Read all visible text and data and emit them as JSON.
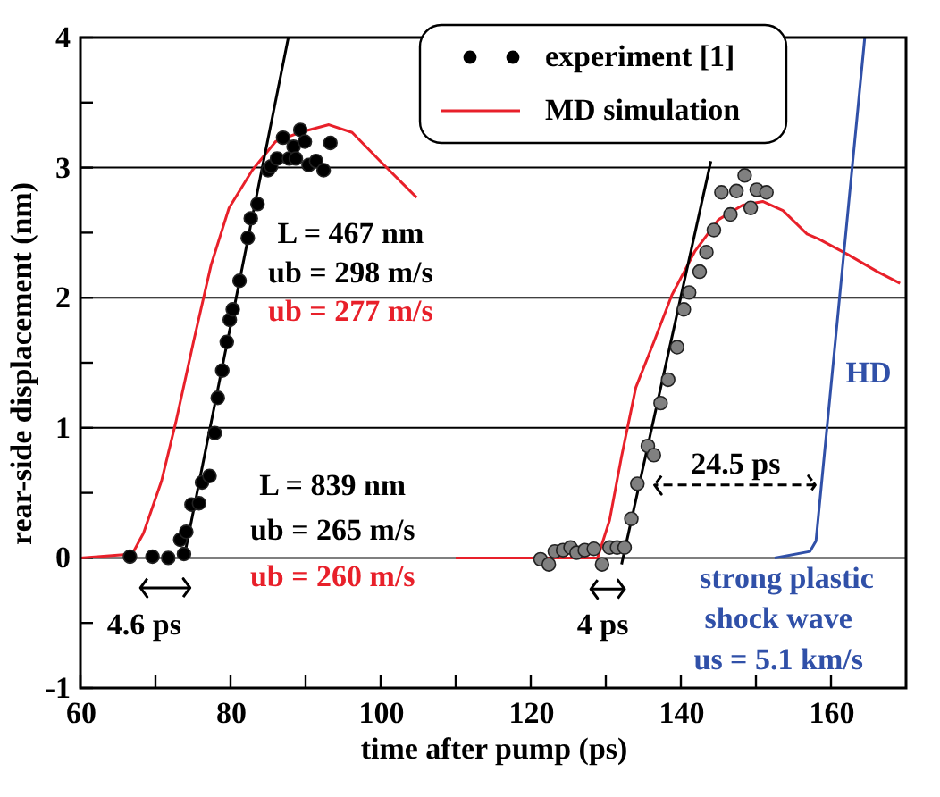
{
  "chart_data": {
    "type": "line",
    "xlabel": "time after pump (ps)",
    "ylabel": "rear-side displacement (nm)",
    "xlim": [
      60,
      170
    ],
    "ylim": [
      -1,
      4
    ],
    "xticks": [
      60,
      {
        "value": 70,
        "label": null
      },
      80,
      {
        "value": 90,
        "label": null
      },
      100,
      {
        "value": 110,
        "label": null
      },
      120,
      {
        "value": 130,
        "label": null
      },
      140,
      {
        "value": 150,
        "label": null
      },
      160
    ],
    "yticks": [
      -1,
      {
        "value": -0.5,
        "label": null
      },
      0,
      {
        "value": 0.5,
        "label": null
      },
      1,
      {
        "value": 1.5,
        "label": null
      },
      2,
      {
        "value": 2.5,
        "label": null
      },
      3,
      {
        "value": 3.5,
        "label": null
      },
      4
    ],
    "grid": "y",
    "legend": "top right",
    "line_style": "solid",
    "series": [
      {
        "color": "#e8202a",
        "x": [
          60,
          66.9,
          68.4,
          70.8,
          72.7,
          75.1,
          77.4,
          79.8,
          82.9,
          86.0,
          89.2,
          93.1,
          96.2,
          100.1,
          104.8
        ],
        "values": [
          0,
          0.03,
          0.19,
          0.59,
          1.04,
          1.67,
          2.25,
          2.69,
          2.98,
          3.2,
          3.27,
          3.33,
          3.27,
          3.04,
          2.77
        ],
        "name": "MD simulation"
      },
      {
        "color": "#e8202a",
        "x": [
          110,
          128.9,
          130.5,
          132.1,
          134.0,
          136.4,
          138.8,
          141.9,
          145.0,
          148.2,
          150.9,
          153.6,
          156.8,
          158.4,
          162.3,
          166.2,
          169.2
        ],
        "values": [
          0,
          0,
          0.29,
          0.78,
          1.31,
          1.66,
          2.02,
          2.36,
          2.6,
          2.71,
          2.74,
          2.67,
          2.49,
          2.45,
          2.33,
          2.2,
          2.11
        ]
      },
      {
        "color": "#3050a8",
        "x": [
          152.5,
          157.2,
          158.0,
          164.5
        ],
        "values": [
          0,
          0.05,
          0.13,
          4.0
        ]
      },
      {
        "color": "#000000",
        "x": [
          73.8,
          87.7
        ],
        "values": [
          0,
          4.0
        ]
      },
      {
        "color": "#000000",
        "x": [
          132.1,
          144.0
        ],
        "values": [
          -0.05,
          3.05
        ]
      },
      {
        "type": "scatter",
        "color": "#000000",
        "name": "experiment [1]",
        "x": [
          66.6,
          69.6,
          71.7,
          73.8,
          73.3,
          74.1,
          74.8,
          75.8,
          76.2,
          77.2,
          77.9,
          78.3,
          78.9,
          79.5,
          79.9,
          80.3,
          81.2,
          82.3,
          82.7,
          83.6,
          85.0,
          85.4,
          86.2,
          87.0,
          87.8,
          88.4,
          88.7,
          89.3,
          89.9,
          90.4,
          91.4,
          92.4,
          93.3
        ],
        "values": [
          0.01,
          0.01,
          0,
          0.03,
          0.14,
          0.2,
          0.41,
          0.42,
          0.58,
          0.63,
          0.96,
          1.23,
          1.44,
          1.66,
          1.83,
          1.91,
          2.13,
          2.46,
          2.61,
          2.72,
          2.98,
          3.01,
          3.07,
          3.23,
          3.07,
          3.16,
          3.07,
          3.29,
          3.2,
          3.02,
          3.05,
          2.98,
          3.19
        ]
      },
      {
        "type": "scatter",
        "color": "#808080",
        "x": [
          121.3,
          122.4,
          123.2,
          124.3,
          125.3,
          126.1,
          127.2,
          128.4,
          129.5,
          130.5,
          131.5,
          132.5,
          133.4,
          134.2,
          135.6,
          136.4,
          137.3,
          138.3,
          139.5,
          140.4,
          141.1,
          142.5,
          143.4,
          144.4,
          145.4,
          146.6,
          147.4,
          148.5,
          149.3,
          150.1,
          151.4
        ],
        "values": [
          -0.01,
          -0.05,
          0.05,
          0.06,
          0.08,
          0.04,
          0.06,
          0.07,
          -0.05,
          0.08,
          0.08,
          0.08,
          0.3,
          0.57,
          0.86,
          0.79,
          1.19,
          1.37,
          1.62,
          1.91,
          2.04,
          2.2,
          2.35,
          2.52,
          2.81,
          2.64,
          2.82,
          2.94,
          2.69,
          2.83,
          2.81
        ]
      }
    ],
    "annotations": [
      "L = 467 nm",
      "ub = 298 m/s",
      "ub = 277 m/s",
      "L = 839 nm",
      "ub = 265 m/s",
      "ub = 260 m/s",
      "4.6 ps",
      "4 ps",
      "24.5 ps",
      "HD",
      "strong plastic",
      "shock wave",
      "us = 5.1 km/s"
    ]
  }
}
